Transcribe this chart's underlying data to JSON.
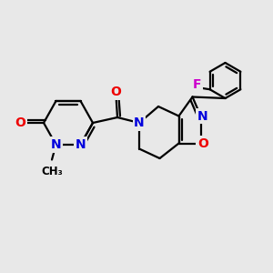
{
  "bg_color": "#e8e8e8",
  "bond_color": "#000000",
  "bond_width": 1.6,
  "atom_colors": {
    "N": "#0000dd",
    "O": "#ee0000",
    "F": "#cc00cc",
    "C": "#000000"
  },
  "font_size_atom": 10,
  "font_size_small": 8.5
}
